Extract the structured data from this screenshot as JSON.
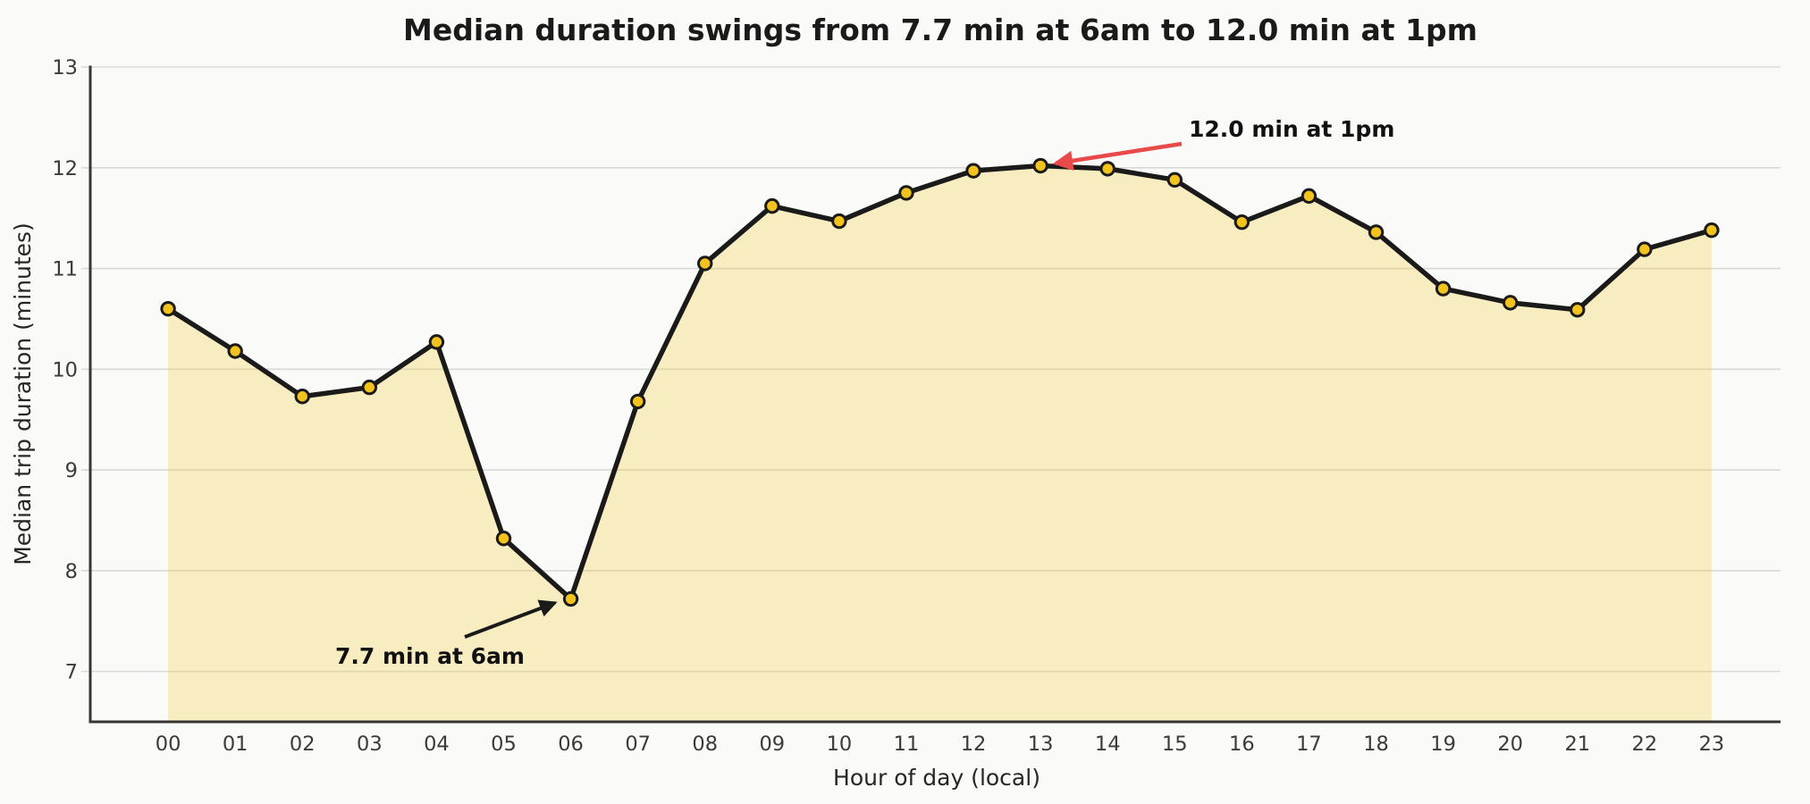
{
  "chart_data": {
    "type": "line",
    "title": "Median duration swings from 7.7 min at 6am to 12.0 min at 1pm",
    "xlabel": "Hour of day (local)",
    "ylabel": "Median trip duration (minutes)",
    "categories": [
      "00",
      "01",
      "02",
      "03",
      "04",
      "05",
      "06",
      "07",
      "08",
      "09",
      "10",
      "11",
      "12",
      "13",
      "14",
      "15",
      "16",
      "17",
      "18",
      "19",
      "20",
      "21",
      "22",
      "23"
    ],
    "series": [
      {
        "name": "Median trip duration",
        "values": [
          10.6,
          10.18,
          9.73,
          9.82,
          10.27,
          8.32,
          7.72,
          9.68,
          11.05,
          11.62,
          11.47,
          11.75,
          11.97,
          12.02,
          11.99,
          11.88,
          11.46,
          11.72,
          11.36,
          10.8,
          10.66,
          10.59,
          11.19,
          11.38
        ]
      }
    ],
    "yticks": [
      7,
      8,
      9,
      10,
      11,
      12,
      13
    ],
    "ylim": [
      6.5,
      13.0
    ],
    "xlim": [
      -1.16,
      24.0
    ],
    "grid": "horizontal",
    "legend": "none",
    "area_fill": true,
    "marker_style": "circle",
    "annotations": [
      {
        "text": "12.0 min at 1pm",
        "point_hour": 13,
        "point_value": 12.02,
        "arrow_side": "right",
        "arrow_color": "#e84a4a"
      },
      {
        "text": "7.7 min at 6am",
        "point_hour": 6,
        "point_value": 7.72,
        "arrow_side": "left",
        "arrow_color": "#1a1a1a"
      }
    ],
    "colors": {
      "background": "#fafaf8",
      "area_fill": "#f5c31d",
      "area_fill_opacity": "0.25",
      "line": "#1a1a1a",
      "marker_fill": "#f2c21d",
      "marker_edge": "#1a1a1a",
      "grid": "#d9d9d7",
      "spine": "#363636",
      "tick_text": "#3b3b3b"
    }
  }
}
